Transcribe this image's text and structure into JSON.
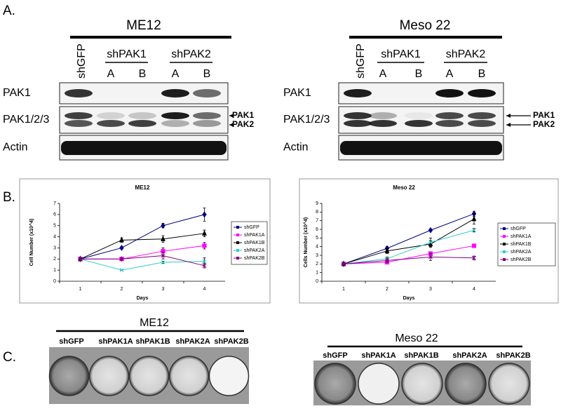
{
  "panel_a": {
    "label": "A.",
    "blots": [
      {
        "title": "ME12",
        "control": "shGFP",
        "groups": [
          {
            "name": "shPAK1",
            "sub": [
              "A",
              "B"
            ]
          },
          {
            "name": "shPAK2",
            "sub": [
              "A",
              "B"
            ]
          }
        ],
        "rows": [
          "PAK1",
          "PAK1/2/3",
          "Actin"
        ],
        "arrows": [
          "PAK1",
          "PAK2"
        ]
      },
      {
        "title": "Meso 22",
        "control": "shGFP",
        "groups": [
          {
            "name": "shPAK1",
            "sub": [
              "A",
              "B"
            ]
          },
          {
            "name": "shPAK2",
            "sub": [
              "A",
              "B"
            ]
          }
        ],
        "rows": [
          "PAK1",
          "PAK1/2/3",
          "Actin"
        ],
        "arrows": [
          "PAK1",
          "PAK2"
        ]
      }
    ]
  },
  "panel_b": {
    "label": "B."
  },
  "chart_data": [
    {
      "type": "line",
      "title": "ME12",
      "x_label": "Days",
      "y_label": "Cell Number (x10^4)",
      "categories": [
        "1",
        "2",
        "3",
        "4"
      ],
      "ylim": [
        0,
        7
      ],
      "yticks": [
        0,
        1,
        2,
        3,
        4,
        5,
        6,
        7
      ],
      "series": [
        {
          "name": "shGFP",
          "color": "#000080",
          "marker": "diamond",
          "values": [
            2,
            3,
            5,
            6
          ],
          "errors": [
            0,
            0,
            0.2,
            0.6
          ]
        },
        {
          "name": "shPAK1A",
          "color": "#ff00ff",
          "marker": "square",
          "values": [
            2,
            2,
            2.7,
            3.2
          ],
          "errors": [
            0,
            0,
            0.3,
            0.3
          ]
        },
        {
          "name": "shPAK1B",
          "color": "#000000",
          "marker": "triangle",
          "values": [
            2,
            3.7,
            3.8,
            4.3
          ],
          "errors": [
            0,
            0.2,
            0.3,
            0.3
          ]
        },
        {
          "name": "shPAK2A",
          "color": "#33cccc",
          "marker": "x",
          "values": [
            2,
            1,
            1.7,
            1.8
          ],
          "errors": [
            0,
            0,
            0.1,
            0.3
          ]
        },
        {
          "name": "shPAK2B",
          "color": "#800080",
          "marker": "star",
          "values": [
            2,
            2,
            2.3,
            1.4
          ],
          "errors": [
            0,
            0,
            0.3,
            0.2
          ]
        }
      ]
    },
    {
      "type": "line",
      "title": "Meso 22",
      "x_label": "Days",
      "y_label": "Cells Number (x10^4)",
      "categories": [
        "1",
        "2",
        "3",
        "4"
      ],
      "ylim": [
        0,
        9
      ],
      "yticks": [
        0,
        1,
        2,
        3,
        4,
        5,
        6,
        7,
        8,
        9
      ],
      "series": [
        {
          "name": "shGFP",
          "color": "#000080",
          "marker": "diamond",
          "values": [
            2,
            3.8,
            5.9,
            7.8
          ],
          "errors": [
            0,
            0.2,
            0.1,
            0.3
          ]
        },
        {
          "name": "shPAK1A",
          "color": "#ff00ff",
          "marker": "square",
          "values": [
            2,
            2.2,
            3.2,
            4.1
          ],
          "errors": [
            0,
            0.2,
            0.2,
            0.2
          ]
        },
        {
          "name": "shPAK1B",
          "color": "#000000",
          "marker": "triangle",
          "values": [
            2,
            3.5,
            4.3,
            7.2
          ],
          "errors": [
            0,
            0.3,
            0.4,
            0.6
          ]
        },
        {
          "name": "shPAK2A",
          "color": "#33cccc",
          "marker": "x",
          "values": [
            2,
            2.6,
            4.5,
            5.9
          ],
          "errors": [
            0,
            0.2,
            0.5,
            0.2
          ]
        },
        {
          "name": "shPAK2B",
          "color": "#800080",
          "marker": "star",
          "values": [
            2,
            2.4,
            2.8,
            2.7
          ],
          "errors": [
            0,
            0.2,
            0.4,
            0.2
          ]
        }
      ]
    }
  ],
  "panel_c": {
    "label": "C.",
    "plates": [
      {
        "title": "ME12",
        "labels": [
          "shGFP",
          "shPAK1A",
          "shPAK1B",
          "shPAK2A",
          "shPAK2B"
        ]
      },
      {
        "title": "Meso 22",
        "labels": [
          "shGFP",
          "shPAK1A",
          "shPAK1B",
          "shPAK2A",
          "shPAK2B"
        ]
      }
    ]
  }
}
